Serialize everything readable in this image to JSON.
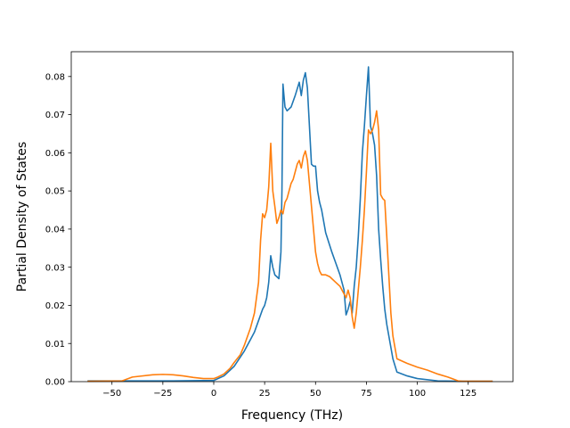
{
  "chart_data": {
    "type": "line",
    "xlabel": "Frequency (THz)",
    "ylabel": "Partial Density of States",
    "xlim": [
      -70,
      147
    ],
    "ylim": [
      0,
      0.0865
    ],
    "xticks": [
      -50,
      -25,
      0,
      25,
      50,
      75,
      100,
      125
    ],
    "yticks": [
      0.0,
      0.01,
      0.02,
      0.03,
      0.04,
      0.05,
      0.06,
      0.07,
      0.08
    ],
    "xtick_labels": [
      "−50",
      "−25",
      "0",
      "25",
      "50",
      "75",
      "100",
      "125"
    ],
    "ytick_labels": [
      "0.00",
      "0.01",
      "0.02",
      "0.03",
      "0.04",
      "0.05",
      "0.06",
      "0.07",
      "0.08"
    ],
    "grid": false,
    "series": [
      {
        "color": "#1f77b4",
        "x": [
          -62,
          -40,
          -20,
          0,
          5,
          10,
          15,
          18,
          20,
          22,
          24,
          25,
          26,
          27,
          28,
          29,
          30,
          31,
          32,
          33,
          33.5,
          34,
          35,
          36,
          38,
          40,
          42,
          43,
          44,
          45,
          46,
          47,
          48,
          49,
          50,
          51,
          52,
          53,
          55,
          58,
          60,
          62,
          64,
          65,
          66,
          67,
          68,
          69,
          70,
          71,
          72,
          73,
          74,
          75,
          76,
          77,
          78,
          79,
          80,
          81,
          82,
          83,
          84,
          85,
          86,
          87,
          88,
          90,
          95,
          100,
          110,
          120,
          137
        ],
        "y": [
          0.0002,
          0.0002,
          0.0002,
          0.0003,
          0.0015,
          0.004,
          0.008,
          0.011,
          0.013,
          0.016,
          0.019,
          0.02,
          0.022,
          0.026,
          0.033,
          0.03,
          0.028,
          0.0275,
          0.027,
          0.034,
          0.05,
          0.078,
          0.072,
          0.071,
          0.072,
          0.075,
          0.0785,
          0.075,
          0.079,
          0.081,
          0.077,
          0.067,
          0.057,
          0.0565,
          0.0565,
          0.05,
          0.047,
          0.045,
          0.039,
          0.034,
          0.031,
          0.028,
          0.024,
          0.0175,
          0.019,
          0.021,
          0.018,
          0.025,
          0.03,
          0.038,
          0.048,
          0.06,
          0.067,
          0.075,
          0.0825,
          0.067,
          0.065,
          0.062,
          0.054,
          0.04,
          0.032,
          0.025,
          0.019,
          0.015,
          0.012,
          0.009,
          0.006,
          0.0025,
          0.0015,
          0.0008,
          0.0002,
          0.0001,
          0.0001
        ]
      },
      {
        "color": "#ff7f0e",
        "x": [
          -62,
          -45,
          -40,
          -30,
          -25,
          -20,
          -15,
          -10,
          -5,
          0,
          2,
          5,
          8,
          10,
          13,
          15,
          18,
          20,
          22,
          23,
          24,
          25,
          26,
          27,
          28,
          29,
          30,
          31,
          32,
          33,
          34,
          35,
          36,
          37,
          38,
          39,
          40,
          41,
          42,
          43,
          44,
          45,
          46,
          47,
          48,
          49,
          50,
          51,
          52,
          53,
          54,
          55,
          57,
          60,
          62,
          64,
          65,
          66,
          67,
          68,
          69,
          70,
          71,
          72,
          73,
          74,
          75,
          76,
          77,
          78,
          79,
          80,
          81,
          82,
          83,
          84,
          85,
          86,
          87,
          88,
          90,
          95,
          100,
          105,
          110,
          115,
          120,
          122,
          137
        ],
        "y": [
          0.0001,
          0.0002,
          0.0012,
          0.0018,
          0.0019,
          0.0018,
          0.0015,
          0.0011,
          0.0008,
          0.0008,
          0.0012,
          0.002,
          0.0035,
          0.005,
          0.007,
          0.0095,
          0.014,
          0.018,
          0.026,
          0.037,
          0.044,
          0.043,
          0.045,
          0.051,
          0.0625,
          0.05,
          0.046,
          0.0415,
          0.043,
          0.045,
          0.044,
          0.047,
          0.048,
          0.05,
          0.052,
          0.053,
          0.055,
          0.057,
          0.058,
          0.056,
          0.059,
          0.0605,
          0.058,
          0.052,
          0.046,
          0.04,
          0.034,
          0.031,
          0.029,
          0.028,
          0.028,
          0.028,
          0.0275,
          0.026,
          0.025,
          0.023,
          0.022,
          0.024,
          0.022,
          0.017,
          0.014,
          0.018,
          0.024,
          0.03,
          0.037,
          0.045,
          0.055,
          0.066,
          0.065,
          0.066,
          0.068,
          0.071,
          0.066,
          0.049,
          0.048,
          0.0475,
          0.038,
          0.028,
          0.018,
          0.012,
          0.006,
          0.0048,
          0.0038,
          0.003,
          0.002,
          0.0012,
          0.0002,
          0.0001,
          0.0001
        ]
      }
    ]
  }
}
